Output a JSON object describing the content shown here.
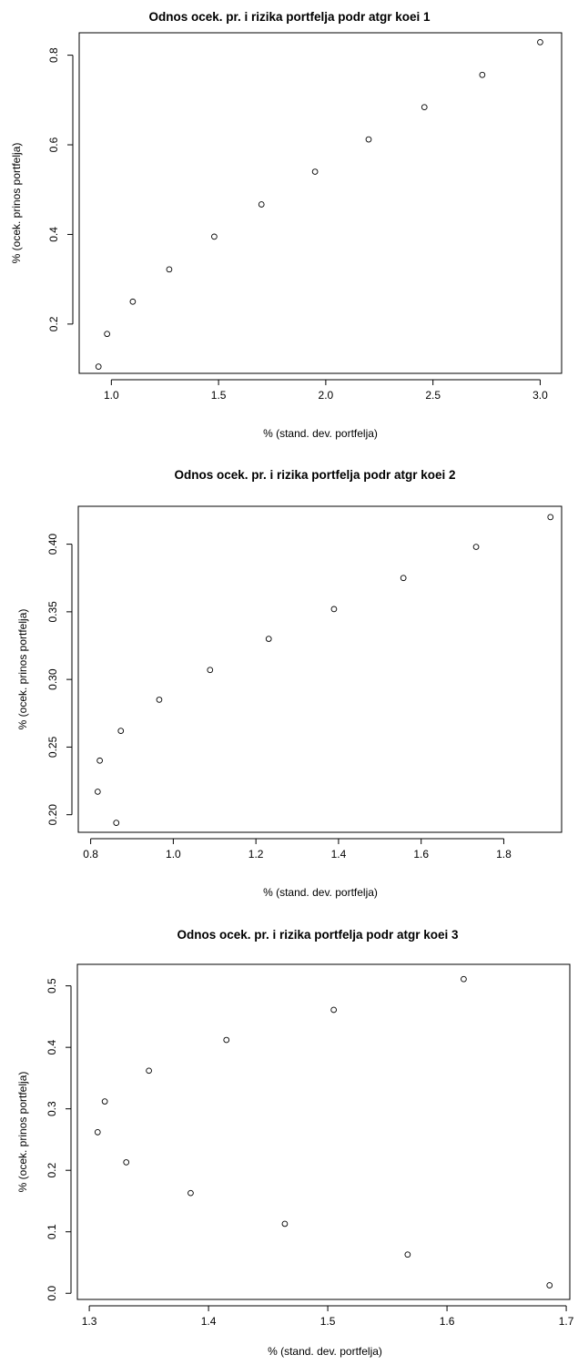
{
  "chart_data": [
    {
      "type": "scatter",
      "title": "Odnos ocek. pr. i rizika portfelja podr atgr koei 1",
      "xlabel": "% (stand. dev. portfelja)",
      "ylabel": "% (ocek. prinos portfelja)",
      "xlim": [
        0.85,
        3.1
      ],
      "ylim": [
        0.09,
        0.85
      ],
      "xticks": [
        1.0,
        1.5,
        2.0,
        2.5,
        3.0
      ],
      "xtick_labels": [
        "1.0",
        "1.5",
        "2.0",
        "2.5",
        "3.0"
      ],
      "yticks": [
        0.2,
        0.4,
        0.6,
        0.8
      ],
      "ytick_labels": [
        "0.2",
        "0.4",
        "0.6",
        "0.8"
      ],
      "grid": false,
      "points": [
        {
          "x": 0.94,
          "y": 0.105
        },
        {
          "x": 0.98,
          "y": 0.178
        },
        {
          "x": 1.1,
          "y": 0.25
        },
        {
          "x": 1.27,
          "y": 0.322
        },
        {
          "x": 1.48,
          "y": 0.395
        },
        {
          "x": 1.7,
          "y": 0.467
        },
        {
          "x": 1.95,
          "y": 0.54
        },
        {
          "x": 2.2,
          "y": 0.612
        },
        {
          "x": 2.46,
          "y": 0.684
        },
        {
          "x": 2.73,
          "y": 0.756
        },
        {
          "x": 3.0,
          "y": 0.829
        }
      ]
    },
    {
      "type": "scatter",
      "title": "Odnos ocek. pr. i rizika portfelja podr atgr koei 2",
      "xlabel": "% (stand. dev. portfelja)",
      "ylabel": "% (ocek. prinos portfelja)",
      "xlim": [
        0.77,
        1.94
      ],
      "ylim": [
        0.187,
        0.428
      ],
      "xticks": [
        0.8,
        1.0,
        1.2,
        1.4,
        1.6,
        1.8
      ],
      "xtick_labels": [
        "0.8",
        "1.0",
        "1.2",
        "1.4",
        "1.6",
        "1.8"
      ],
      "yticks": [
        0.2,
        0.25,
        0.3,
        0.35,
        0.4
      ],
      "ytick_labels": [
        "0.20",
        "0.25",
        "0.30",
        "0.35",
        "0.40"
      ],
      "grid": false,
      "points": [
        {
          "x": 0.817,
          "y": 0.217
        },
        {
          "x": 0.822,
          "y": 0.24
        },
        {
          "x": 0.862,
          "y": 0.194
        },
        {
          "x": 0.873,
          "y": 0.262
        },
        {
          "x": 0.966,
          "y": 0.285
        },
        {
          "x": 1.089,
          "y": 0.307
        },
        {
          "x": 1.231,
          "y": 0.33
        },
        {
          "x": 1.389,
          "y": 0.352
        },
        {
          "x": 1.557,
          "y": 0.375
        },
        {
          "x": 1.733,
          "y": 0.398
        },
        {
          "x": 1.913,
          "y": 0.42
        }
      ]
    },
    {
      "type": "scatter",
      "title": "Odnos ocek. pr. i rizika portfelja podr atgr koei 3",
      "xlabel": "% (stand. dev. portfelja)",
      "ylabel": "% (ocek. prinos portfelja)",
      "xlim": [
        1.29,
        1.703
      ],
      "ylim": [
        -0.01,
        0.535
      ],
      "xticks": [
        1.3,
        1.4,
        1.5,
        1.6,
        1.7
      ],
      "xtick_labels": [
        "1.3",
        "1.4",
        "1.5",
        "1.6",
        "1.7"
      ],
      "yticks": [
        0.0,
        0.1,
        0.2,
        0.3,
        0.4,
        0.5
      ],
      "ytick_labels": [
        "0.0",
        "0.1",
        "0.2",
        "0.3",
        "0.4",
        "0.5"
      ],
      "grid": false,
      "points": [
        {
          "x": 1.307,
          "y": 0.262
        },
        {
          "x": 1.313,
          "y": 0.312
        },
        {
          "x": 1.331,
          "y": 0.213
        },
        {
          "x": 1.35,
          "y": 0.362
        },
        {
          "x": 1.385,
          "y": 0.163
        },
        {
          "x": 1.415,
          "y": 0.412
        },
        {
          "x": 1.464,
          "y": 0.113
        },
        {
          "x": 1.505,
          "y": 0.461
        },
        {
          "x": 1.567,
          "y": 0.063
        },
        {
          "x": 1.614,
          "y": 0.511
        },
        {
          "x": 1.686,
          "y": 0.013
        }
      ]
    }
  ]
}
